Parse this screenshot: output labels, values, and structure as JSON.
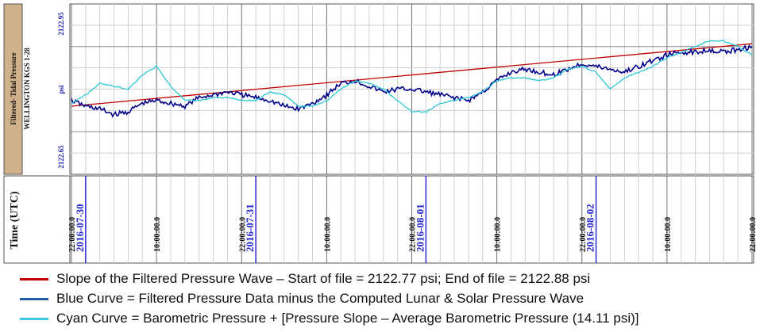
{
  "chart_data": {
    "type": "line",
    "panel_label_line1": "Filtered- Tidal Pressure",
    "panel_label_line2": "WELLINGTON KGS 1-28",
    "ylabel": "psi",
    "ylim": [
      2122.65,
      2122.95
    ],
    "y_ticks": [
      "2122.95",
      "2122.65"
    ],
    "xlabel": "Time (UTC)",
    "x_ticks": [
      {
        "label": "22:00:00.0",
        "t": 0
      },
      {
        "label": "2016-07-30",
        "t": 2,
        "date": true
      },
      {
        "label": "10:00:00.0",
        "t": 12
      },
      {
        "label": "22:00:00.0",
        "t": 24
      },
      {
        "label": "2016-07-31",
        "t": 26,
        "date": true
      },
      {
        "label": "10:00:00.0",
        "t": 36
      },
      {
        "label": "22:00:00.0",
        "t": 48
      },
      {
        "label": "2016-08-01",
        "t": 50,
        "date": true
      },
      {
        "label": "10:00:00.0",
        "t": 60
      },
      {
        "label": "22:00:00.0",
        "t": 72
      },
      {
        "label": "2016-08-02",
        "t": 74,
        "date": true
      },
      {
        "label": "10:00:00.0",
        "t": 84
      },
      {
        "label": "22:00:00.0",
        "t": 96
      }
    ],
    "series": [
      {
        "key": "slope",
        "color": "#c00000",
        "t": [
          0,
          96
        ],
        "y": [
          2122.77,
          2122.88
        ]
      },
      {
        "key": "blue",
        "color": "#00008b",
        "t": [
          0,
          2,
          4,
          6,
          8,
          10,
          12,
          14,
          16,
          18,
          20,
          22,
          24,
          26,
          28,
          30,
          32,
          34,
          36,
          38,
          40,
          42,
          44,
          46,
          48,
          50,
          52,
          54,
          56,
          58,
          60,
          62,
          64,
          66,
          68,
          70,
          72,
          74,
          76,
          78,
          80,
          82,
          84,
          86,
          88,
          90,
          92,
          94,
          96
        ],
        "y": [
          2122.78,
          2122.77,
          2122.765,
          2122.755,
          2122.76,
          2122.775,
          2122.78,
          2122.775,
          2122.77,
          2122.785,
          2122.79,
          2122.795,
          2122.79,
          2122.785,
          2122.78,
          2122.77,
          2122.765,
          2122.775,
          2122.79,
          2122.81,
          2122.815,
          2122.805,
          2122.795,
          2122.8,
          2122.8,
          2122.795,
          2122.79,
          2122.785,
          2122.78,
          2122.795,
          2122.815,
          2122.83,
          2122.835,
          2122.83,
          2122.825,
          2122.835,
          2122.845,
          2122.84,
          2122.835,
          2122.83,
          2122.84,
          2122.85,
          2122.86,
          2122.865,
          2122.865,
          2122.87,
          2122.865,
          2122.87,
          2122.875
        ]
      },
      {
        "key": "cyan",
        "color": "#2ec8d6",
        "t": [
          0,
          2,
          4,
          6,
          8,
          10,
          12,
          14,
          16,
          18,
          20,
          22,
          24,
          26,
          28,
          30,
          32,
          34,
          36,
          38,
          40,
          42,
          44,
          46,
          48,
          50,
          52,
          54,
          56,
          58,
          60,
          62,
          64,
          66,
          68,
          70,
          72,
          74,
          76,
          78,
          80,
          82,
          84,
          86,
          88,
          90,
          92,
          94,
          96
        ],
        "y": [
          2122.775,
          2122.79,
          2122.81,
          2122.805,
          2122.8,
          2122.825,
          2122.84,
          2122.805,
          2122.78,
          2122.78,
          2122.785,
          2122.785,
          2122.78,
          2122.78,
          2122.795,
          2122.79,
          2122.77,
          2122.77,
          2122.78,
          2122.8,
          2122.815,
          2122.81,
          2122.8,
          2122.78,
          2122.76,
          2122.76,
          2122.775,
          2122.78,
          2122.785,
          2122.795,
          2122.815,
          2122.82,
          2122.82,
          2122.815,
          2122.82,
          2122.835,
          2122.84,
          2122.83,
          2122.8,
          2122.82,
          2122.83,
          2122.84,
          2122.855,
          2122.865,
          2122.875,
          2122.885,
          2122.885,
          2122.875,
          2122.86
        ]
      }
    ],
    "legend": [
      {
        "color": "#c00000",
        "text": "Slope of the Filtered Pressure Wave – Start of file = 2122.77 psi; End of file = 2122.88 psi"
      },
      {
        "color": "#1f5fa8",
        "text": "Blue Curve = Filtered Pressure Data minus the Computed Lunar & Solar Pressure Wave"
      },
      {
        "color": "#3cc6e8",
        "text": "Cyan Curve = Barometric Pressure + [Pressure Slope – Average Barometric Pressure (14.11 psi)]"
      }
    ]
  }
}
